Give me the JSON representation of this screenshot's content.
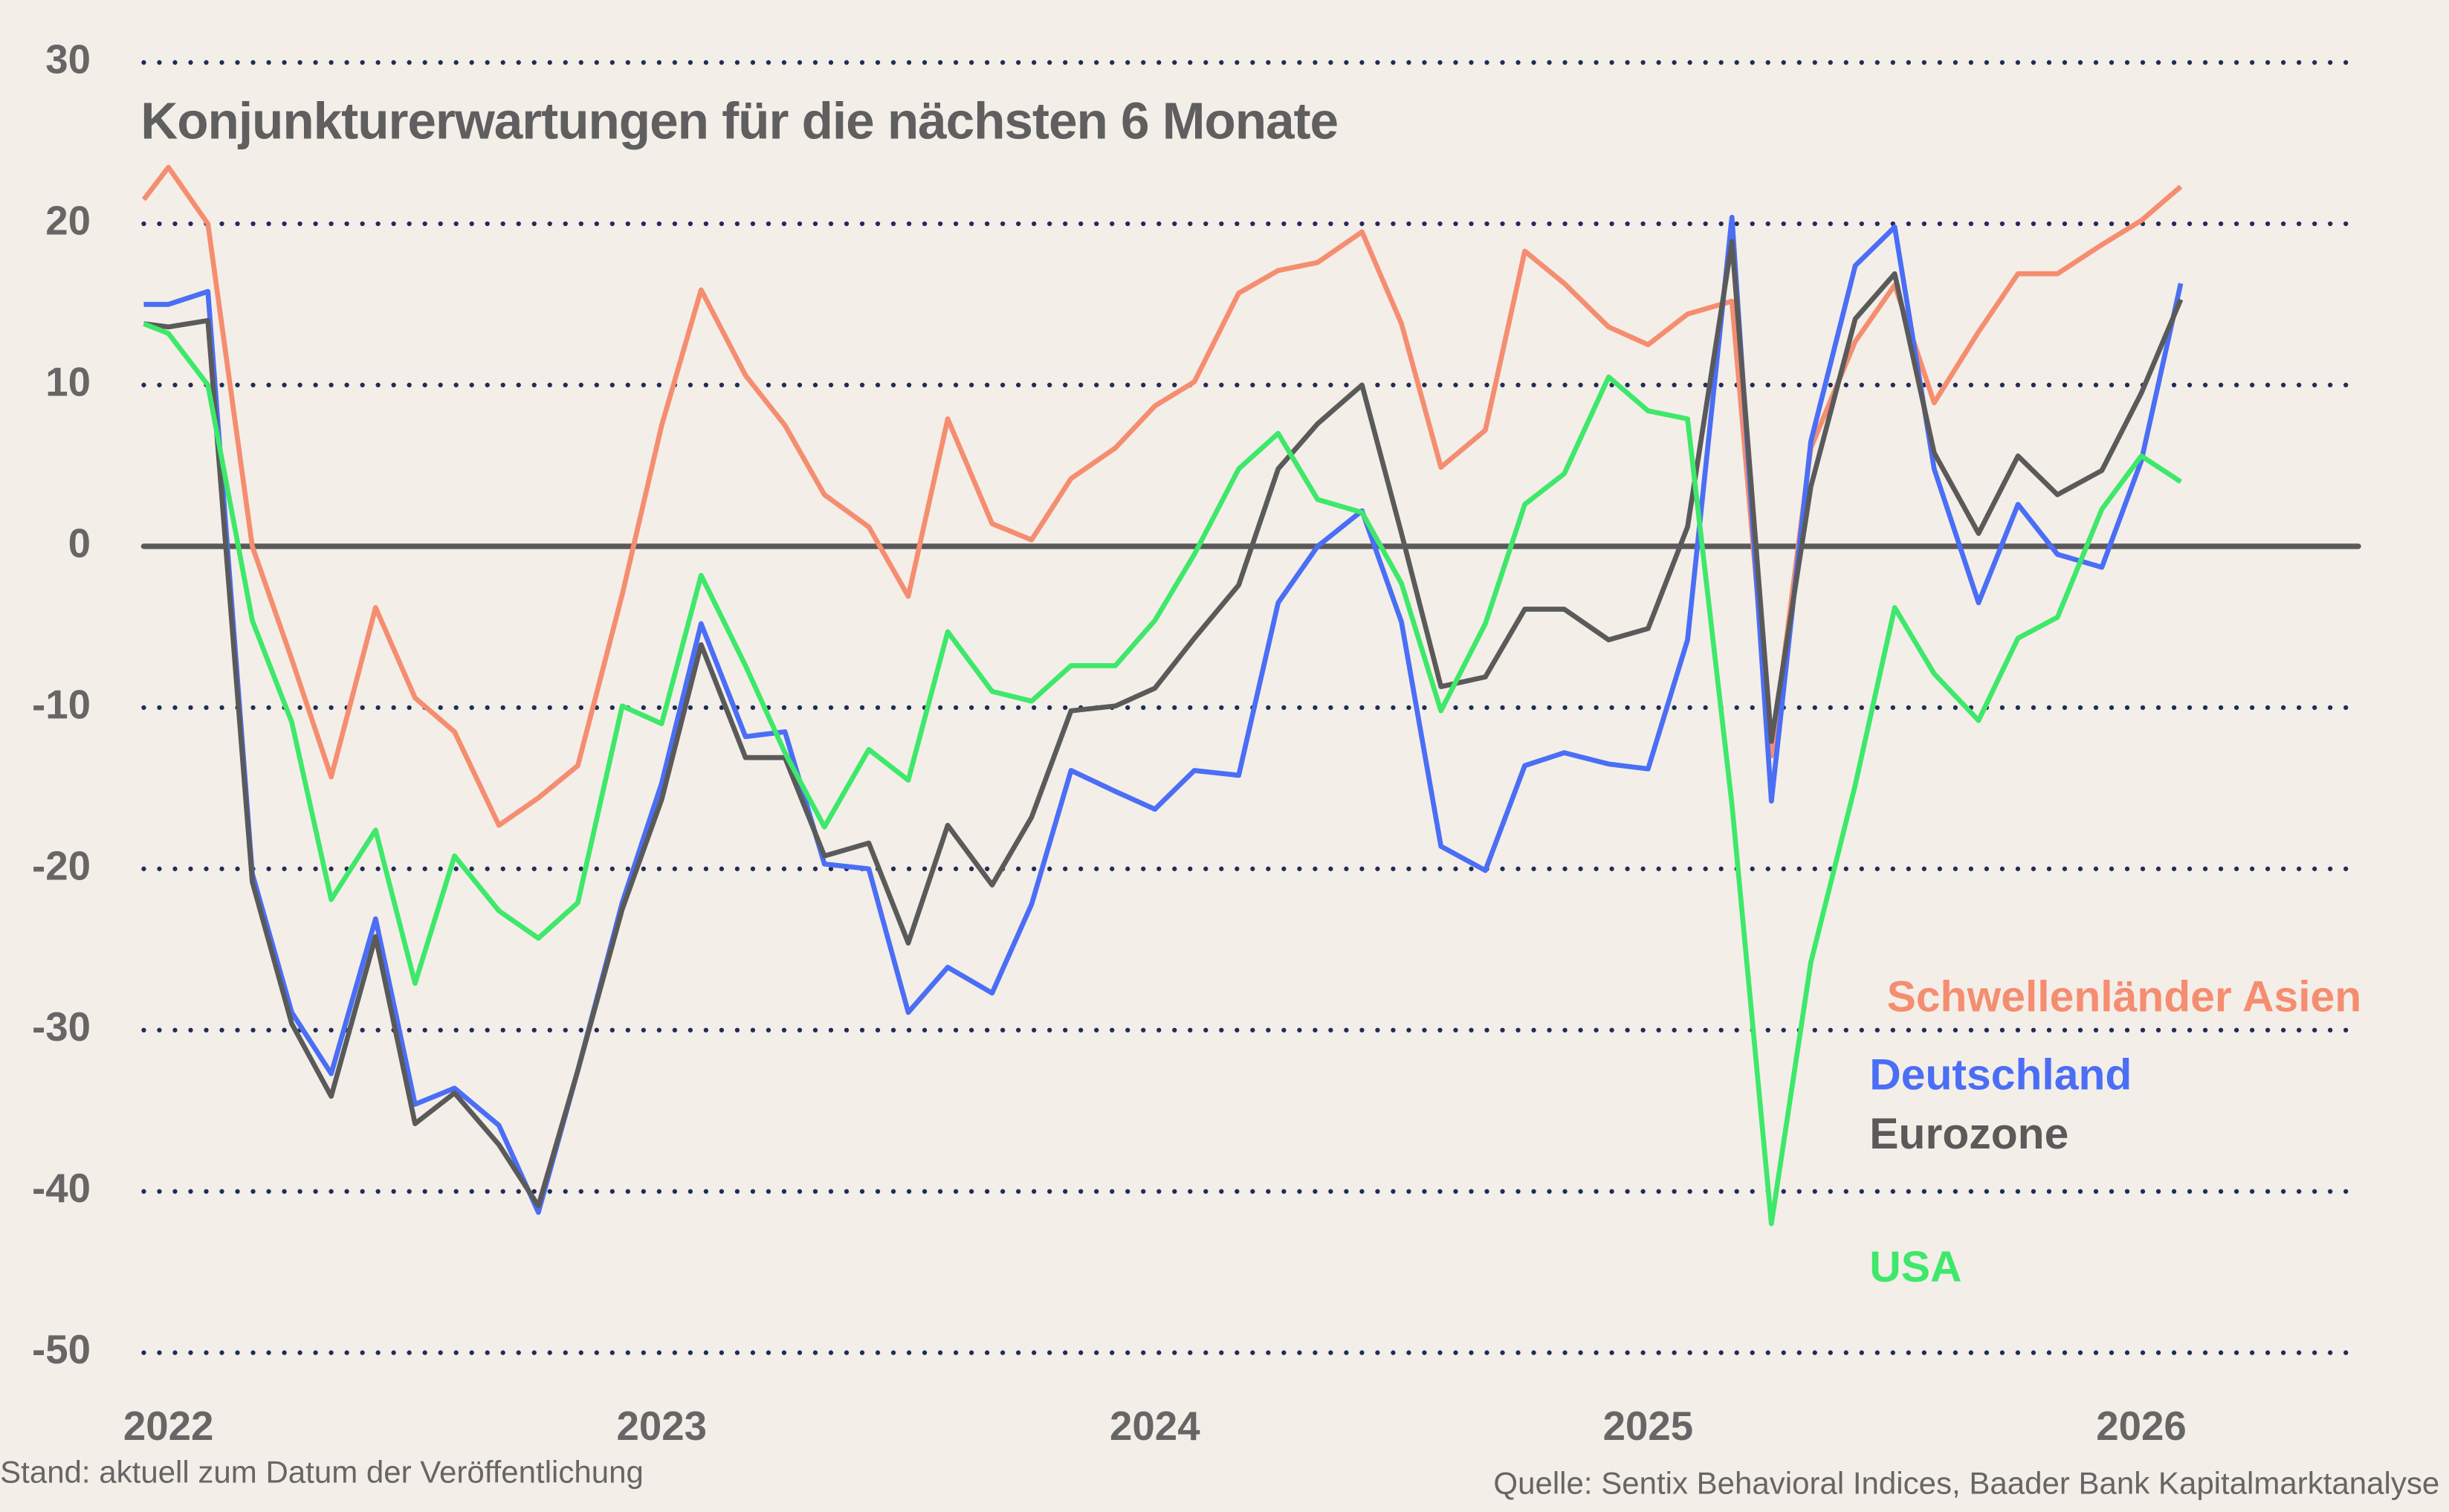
{
  "chart_data": {
    "type": "line",
    "title": "Konjunkturerwartungen für die nächsten 6 Monate",
    "footnote": "Stand: aktuell zum Datum der Veröffentlichung",
    "source": "Quelle: Sentix Behavioral Indices, Baader Bank Kapitalmarktanalyse",
    "x": [
      2021.95,
      2022,
      2022.08,
      2022.17,
      2022.25,
      2022.33,
      2022.42,
      2022.5,
      2022.58,
      2022.67,
      2022.75,
      2022.83,
      2022.92,
      2023,
      2023.08,
      2023.17,
      2023.25,
      2023.33,
      2023.42,
      2023.5,
      2023.58,
      2023.67,
      2023.75,
      2023.83,
      2023.92,
      2024,
      2024.08,
      2024.17,
      2024.25,
      2024.33,
      2024.42,
      2024.5,
      2024.58,
      2024.67,
      2024.75,
      2024.83,
      2024.92,
      2025,
      2025.08,
      2025.17,
      2025.25,
      2025.33,
      2025.42,
      2025.5,
      2025.58,
      2025.67,
      2025.75,
      2025.83,
      2025.92,
      2026,
      2026.08
    ],
    "xlim": [
      2021.95,
      2026.44
    ],
    "xticks": [
      2022,
      2023,
      2024,
      2025,
      2026
    ],
    "ylim": [
      -50,
      30
    ],
    "yticks": [
      -50,
      -40,
      -30,
      -20,
      -10,
      0,
      10,
      20,
      30
    ],
    "grid": true,
    "series": [
      {
        "name": "Schwellenländer Asien",
        "color": "#f58d70",
        "values": [
          21.5,
          23.5,
          20,
          0,
          -7,
          -14.3,
          -3.8,
          -9.4,
          -11.5,
          -17.3,
          -15.6,
          -13.6,
          -3,
          7.5,
          15.9,
          10.6,
          7.5,
          3.2,
          1.2,
          -3.1,
          7.9,
          1.4,
          0.4,
          4.2,
          6.1,
          8.7,
          10.2,
          15.7,
          17.1,
          17.6,
          19.5,
          13.8,
          4.9,
          7.2,
          18.3,
          16.3,
          13.6,
          12.5,
          14.4,
          15.2,
          -13,
          6.1,
          12.7,
          16.2,
          8.9,
          13.3,
          16.9,
          16.9,
          18.7,
          20.2,
          22.3
        ]
      },
      {
        "name": "Deutschland",
        "color": "#4a6ef5",
        "values": [
          15,
          15,
          15.8,
          -20.3,
          -28.9,
          -32.7,
          -23.1,
          -34.6,
          -33.6,
          -35.9,
          -41.3,
          -32.5,
          -22.1,
          -14.7,
          -4.8,
          -11.8,
          -11.5,
          -19.7,
          -20,
          -28.9,
          -26.1,
          -27.7,
          -22.2,
          -13.9,
          -15.2,
          -16.3,
          -13.9,
          -14.2,
          -3.5,
          0,
          2.2,
          -4.7,
          -18.6,
          -20.1,
          -13.6,
          -12.8,
          -13.5,
          -13.8,
          -5.8,
          20.4,
          -15.8,
          6.5,
          17.4,
          19.8,
          4.8,
          -3.5,
          2.6,
          -0.5,
          -1.3,
          5.3,
          16.3
        ]
      },
      {
        "name": "Eurozone",
        "color": "#5a5a5a",
        "values": [
          13.8,
          13.6,
          14,
          -20.8,
          -29.6,
          -34.1,
          -24.2,
          -35.8,
          -33.9,
          -37.1,
          -40.9,
          -32.5,
          -22.5,
          -15.7,
          -6.1,
          -13.1,
          -13.1,
          -19.2,
          -18.4,
          -24.6,
          -17.3,
          -21,
          -16.8,
          -10.2,
          -9.9,
          -8.8,
          -5.7,
          -2.4,
          4.8,
          7.6,
          10,
          0.8,
          -8.7,
          -8.1,
          -3.9,
          -3.9,
          -5.8,
          -5.1,
          1.2,
          18.9,
          -12.1,
          3.7,
          14.1,
          16.9,
          5.8,
          0.8,
          5.6,
          3.2,
          4.7,
          9.5,
          15.3
        ]
      },
      {
        "name": "USA",
        "color": "#3ee86a",
        "values": [
          13.8,
          13.2,
          10,
          -4.6,
          -10.9,
          -21.9,
          -17.6,
          -27.1,
          -19.2,
          -22.6,
          -24.3,
          -22.1,
          -9.9,
          -11,
          -1.8,
          -7.4,
          -12.8,
          -17.4,
          -12.6,
          -14.5,
          -5.3,
          -9,
          -9.6,
          -7.4,
          -7.4,
          -4.6,
          -0.5,
          4.8,
          7,
          2.9,
          2.1,
          -2.3,
          -10.2,
          -4.8,
          2.6,
          4.5,
          10.5,
          8.4,
          7.9,
          -16,
          -42,
          -25.8,
          -14.8,
          -3.8,
          -7.9,
          -10.8,
          -5.7,
          -4.4,
          2.3,
          5.6,
          4
        ]
      }
    ]
  }
}
